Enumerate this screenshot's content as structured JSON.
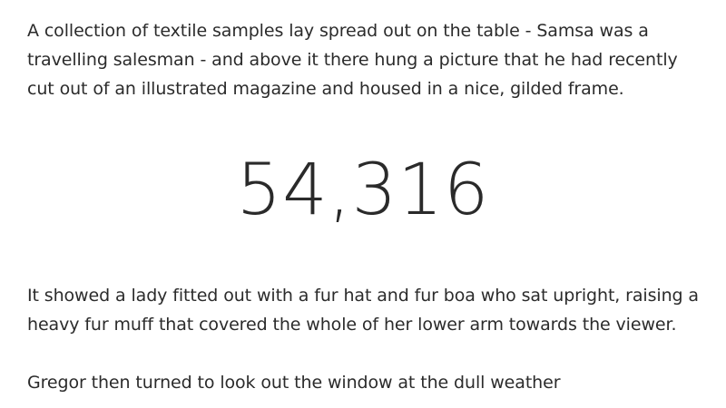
{
  "article": {
    "paragraph_1": "A collection of textile samples lay spread out on the table - Samsa was a travelling salesman - and above it there hung a picture that he had recently cut out of an illustrated magazine and housed in a nice, gilded frame.",
    "big_number": "54,316",
    "paragraph_2": "It showed a lady fitted out with a fur hat and fur boa who sat upright, raising a heavy fur muff that covered the whole of her lower arm towards the viewer.",
    "paragraph_3": "Gregor then turned to look out the window at the dull weather"
  }
}
